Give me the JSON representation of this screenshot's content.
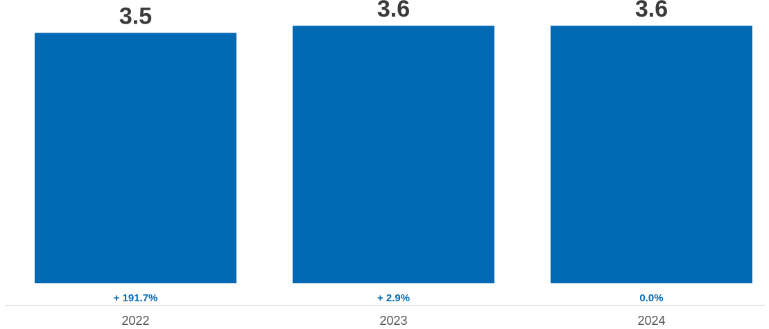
{
  "chart_data": {
    "type": "bar",
    "title": "",
    "xlabel": "",
    "ylabel": "",
    "categories": [
      "2022",
      "2023",
      "2024"
    ],
    "values": [
      3.5,
      3.6,
      3.6
    ],
    "value_labels": [
      "3.5",
      "3.6",
      "3.6"
    ],
    "change_labels": [
      "+ 191.7%",
      "+ 2.9%",
      "0.0%"
    ],
    "ylim": [
      0,
      3.65
    ],
    "grid": false,
    "legend": "none"
  },
  "colors": {
    "bar": "#0069B4",
    "value_label": "#3A3A3A",
    "change_label": "#0069B4",
    "tick_label": "#555555",
    "baseline": "#D5D5D5"
  }
}
